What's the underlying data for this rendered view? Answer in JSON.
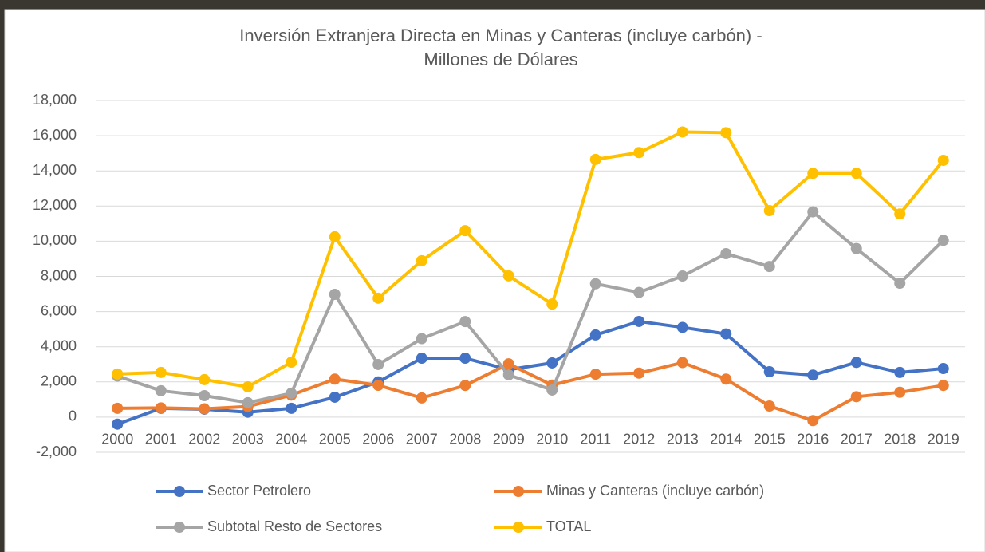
{
  "chart_data": {
    "type": "line",
    "title": [
      "Inversión Extranjera Directa en Minas y Canteras (incluye carbón) -",
      "Millones de Dólares"
    ],
    "categories": [
      "2000",
      "2001",
      "2002",
      "2003",
      "2004",
      "2005",
      "2006",
      "2007",
      "2008",
      "2009",
      "2010",
      "2011",
      "2012",
      "2013",
      "2014",
      "2015",
      "2016",
      "2017",
      "2018",
      "2019"
    ],
    "series": [
      {
        "name": "Sector Petrolero",
        "color": "#4472c4",
        "values": [
          -400,
          500,
          450,
          280,
          500,
          1130,
          2000,
          3350,
          3350,
          2700,
          3080,
          4670,
          5440,
          5100,
          4730,
          2580,
          2390,
          3110,
          2540,
          2760
        ]
      },
      {
        "name": "Minas y Canteras (incluye carbón)",
        "color": "#ed7d31",
        "values": [
          500,
          520,
          470,
          600,
          1250,
          2160,
          1810,
          1090,
          1800,
          3030,
          1820,
          2440,
          2500,
          3100,
          2160,
          630,
          -200,
          1160,
          1410,
          1800
        ]
      },
      {
        "name": "Subtotal Resto de Sectores",
        "color": "#a5a5a5",
        "values": [
          2330,
          1500,
          1220,
          820,
          1360,
          6980,
          2990,
          4460,
          5430,
          2400,
          1540,
          7580,
          7090,
          8020,
          9290,
          8560,
          11670,
          9580,
          7610,
          10050
        ]
      },
      {
        "name": "TOTAL",
        "color": "#ffc000",
        "values": [
          2450,
          2540,
          2130,
          1720,
          3120,
          10250,
          6760,
          8890,
          10600,
          8030,
          6430,
          14650,
          15040,
          16210,
          16170,
          11740,
          13860,
          13860,
          11550,
          14600
        ]
      }
    ],
    "ylim": [
      -2000,
      18000
    ],
    "yticks": [
      {
        "value": -2000,
        "label": "-2,000"
      },
      0,
      {
        "value": 2000,
        "label": "2,000"
      },
      {
        "value": 4000,
        "label": "4,000"
      },
      {
        "value": 6000,
        "label": "6,000"
      },
      {
        "value": 8000,
        "label": "8,000"
      },
      {
        "value": 10000,
        "label": "10,000"
      },
      {
        "value": 12000,
        "label": "12,000"
      },
      {
        "value": 14000,
        "label": "14,000"
      },
      {
        "value": 16000,
        "label": "16,000"
      },
      {
        "value": 18000,
        "label": "18,000"
      }
    ],
    "grid": true,
    "legend": "bottom"
  }
}
